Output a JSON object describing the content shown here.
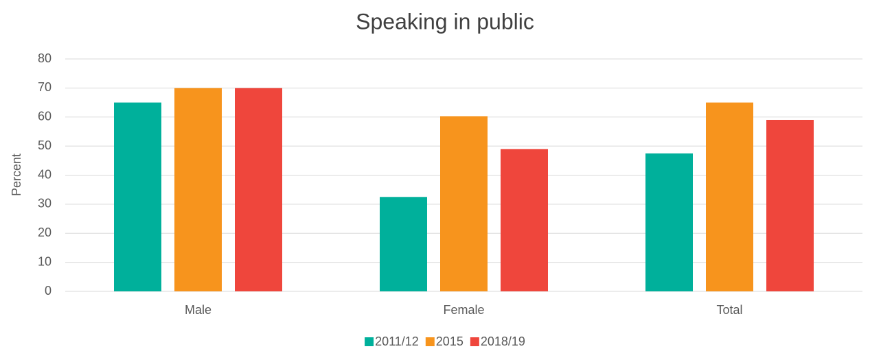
{
  "chart_data": {
    "type": "bar",
    "title": "Speaking in public",
    "y_label": "Percent",
    "categories": [
      "Male",
      "Female",
      "Total"
    ],
    "series": [
      {
        "name": "2011/12",
        "color": "#00b09b",
        "values": [
          65,
          32.5,
          47.5
        ]
      },
      {
        "name": "2015",
        "color": "#f7941d",
        "values": [
          70,
          60.3,
          65
        ]
      },
      {
        "name": "2018/19",
        "color": "#ef463c",
        "values": [
          70,
          49,
          59
        ]
      }
    ],
    "ylim": [
      0,
      80
    ],
    "yticks": [
      0,
      10,
      20,
      30,
      40,
      50,
      60,
      70,
      80
    ],
    "grid": true,
    "legend": "bottom"
  }
}
